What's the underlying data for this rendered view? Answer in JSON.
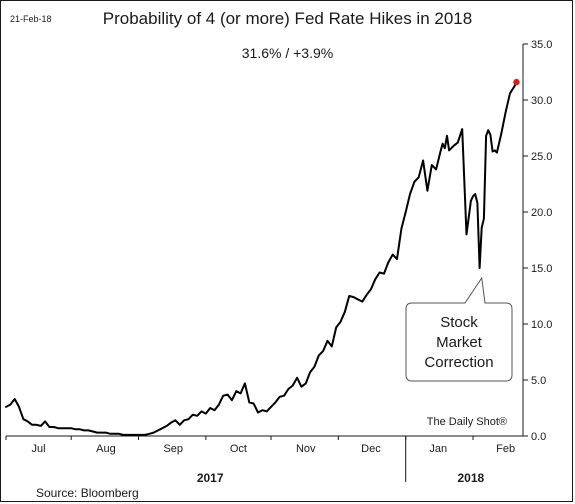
{
  "header": {
    "date": "21-Feb-18",
    "title": "Probability of 4 (or more) Fed Rate Hikes in 2018",
    "subtitle": "31.6%  /  +3.9%"
  },
  "footer": {
    "source": "Source: Bloomberg",
    "credit": "The Daily Shot®"
  },
  "colors": {
    "line": "#000000",
    "last_point": "#e8141b",
    "axis": "#1a1a1a"
  },
  "chart_data": {
    "type": "line",
    "title": "Probability of 4 (or more) Fed Rate Hikes in 2018",
    "subtitle": "31.6%  /  +3.9%",
    "ylim": [
      0,
      35
    ],
    "yticks": [
      "0.0",
      "5.0",
      "10.0",
      "15.0",
      "20.0",
      "25.0",
      "30.0",
      "35.0"
    ],
    "y_axis_side": "right",
    "grid": false,
    "x_month_labels": [
      {
        "label": "Jul",
        "x": 15
      },
      {
        "label": "Aug",
        "x": 46
      },
      {
        "label": "Sep",
        "x": 77
      },
      {
        "label": "Oct",
        "x": 107
      },
      {
        "label": "Nov",
        "x": 138
      },
      {
        "label": "Dec",
        "x": 168
      },
      {
        "label": "Jan",
        "x": 199
      },
      {
        "label": "Feb",
        "x": 230
      }
    ],
    "year_labels": [
      {
        "label": "2017",
        "x": 94
      },
      {
        "label": "2018",
        "x": 214
      }
    ],
    "year_divider_x": 184,
    "xlim": [
      0,
      238
    ],
    "annotation": {
      "text": [
        "Stock",
        "Market",
        "Correction"
      ],
      "x": 219,
      "y": 15.0
    },
    "series": [
      {
        "x": [
          0,
          2,
          4,
          6,
          8,
          10,
          12,
          14,
          16,
          18,
          20,
          22,
          24,
          26,
          28,
          30,
          32,
          34,
          36,
          38,
          40,
          42,
          44,
          46,
          48,
          50,
          52,
          54,
          56,
          58,
          60,
          62,
          64,
          66,
          68,
          70,
          72,
          74,
          76,
          78,
          80,
          82,
          84,
          86,
          88,
          90,
          92,
          94,
          96,
          98,
          100,
          102,
          104,
          106,
          108,
          110,
          112,
          114,
          116,
          118,
          120,
          122,
          124,
          126,
          128,
          130,
          132,
          134,
          136,
          138,
          140,
          142,
          144,
          146,
          148,
          150,
          152,
          154,
          156,
          158,
          160,
          162,
          164,
          166,
          168,
          170,
          172,
          174,
          176,
          178,
          180,
          182,
          184,
          186,
          188,
          190,
          192,
          194,
          196,
          198,
          200,
          201,
          202,
          203,
          204,
          206,
          208,
          210,
          212,
          213,
          214,
          215,
          216,
          217,
          218,
          219,
          220,
          221,
          222,
          223,
          224,
          225,
          226,
          228,
          230,
          232,
          234,
          235
        ],
        "y": [
          2.6,
          2.8,
          3.3,
          2.6,
          1.5,
          1.3,
          1.0,
          1.0,
          0.9,
          1.3,
          0.8,
          0.8,
          0.7,
          0.7,
          0.7,
          0.7,
          0.6,
          0.6,
          0.5,
          0.5,
          0.4,
          0.3,
          0.3,
          0.3,
          0.2,
          0.2,
          0.2,
          0.1,
          0.1,
          0.1,
          0.1,
          0.1,
          0.1,
          0.2,
          0.3,
          0.5,
          0.7,
          0.9,
          1.2,
          1.4,
          1.0,
          1.4,
          1.5,
          1.9,
          1.8,
          2.2,
          2.0,
          2.5,
          2.3,
          2.8,
          3.6,
          3.7,
          3.2,
          4.0,
          3.8,
          4.7,
          3.0,
          2.9,
          2.1,
          2.3,
          2.2,
          2.6,
          3.0,
          3.5,
          3.6,
          4.2,
          4.5,
          5.2,
          4.4,
          4.7,
          5.7,
          6.2,
          7.2,
          7.6,
          8.5,
          8.0,
          9.7,
          10.2,
          11.1,
          12.5,
          12.4,
          12.2,
          12.0,
          12.6,
          13.1,
          14.0,
          14.6,
          14.5,
          15.5,
          16.2,
          15.8,
          18.5,
          20.0,
          21.6,
          22.7,
          23.1,
          24.6,
          21.9,
          24.2,
          23.8,
          25.4,
          26.1,
          25.7,
          26.8,
          25.5,
          25.9,
          26.2,
          27.4,
          18.0,
          19.5,
          21.0,
          21.4,
          21.6,
          20.8,
          15.0,
          18.6,
          19.4,
          26.8,
          27.3,
          26.9,
          25.4,
          25.5,
          25.3,
          27.0,
          28.9,
          30.6,
          31.2,
          31.6
        ]
      }
    ]
  }
}
